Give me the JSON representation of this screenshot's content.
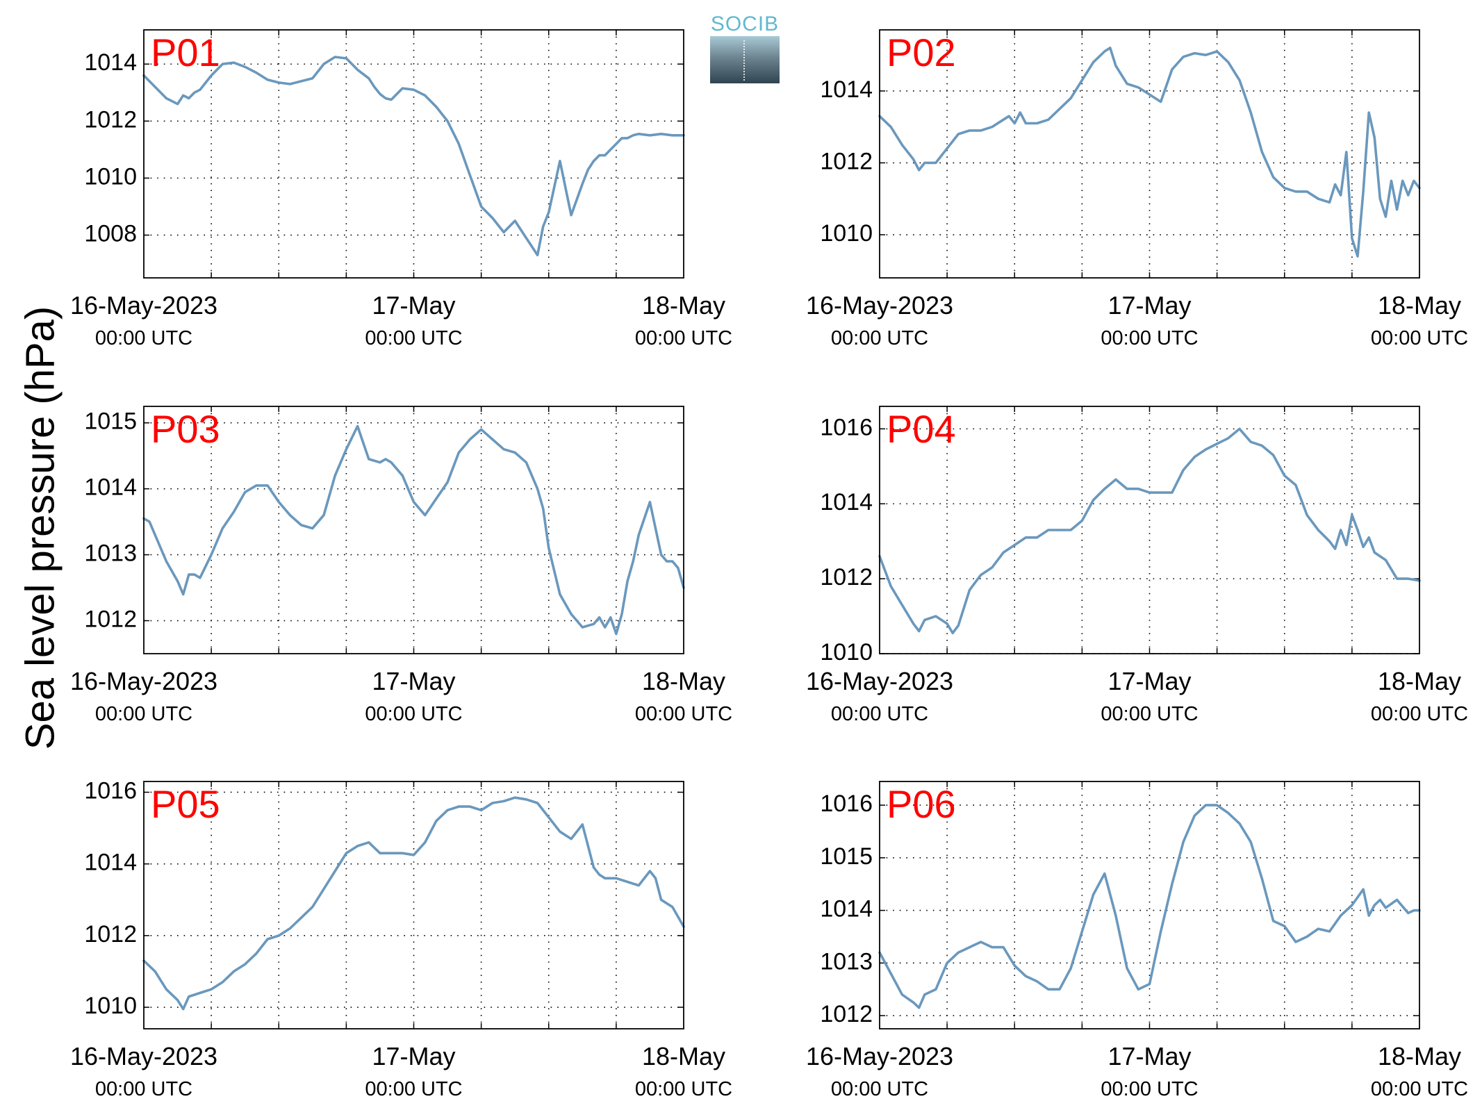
{
  "ylabel": "Sea level pressure (hPa)",
  "logo": {
    "text": "SOCIB"
  },
  "colors": {
    "line": "#6a98bd",
    "station_label": "#ff0000",
    "grid": "#000000"
  },
  "chart_data": [
    {
      "type": "line",
      "title": "P01",
      "xlabel": "",
      "ylabel": "Sea level pressure (hPa)",
      "xlim": [
        0,
        48
      ],
      "ylim": [
        1006.5,
        1015.2
      ],
      "yticks": [
        1008,
        1010,
        1012,
        1014
      ],
      "xticks": [
        {
          "x": 0,
          "line1": "16-May-2023",
          "line2": "00:00 UTC"
        },
        {
          "x": 24,
          "line1": "17-May",
          "line2": "00:00 UTC"
        },
        {
          "x": 48,
          "line1": "18-May",
          "line2": "00:00 UTC"
        }
      ],
      "xgrid": [
        6,
        12,
        18,
        24,
        30,
        36,
        42
      ],
      "series": [
        {
          "x": [
            0,
            1,
            2,
            3,
            3.5,
            4,
            4.5,
            5,
            6,
            7,
            8,
            9,
            10,
            11,
            12,
            13,
            14,
            15,
            16,
            17,
            18,
            19,
            20,
            20.5,
            21,
            21.5,
            22,
            23,
            24,
            25,
            26,
            27,
            28,
            29,
            30,
            31,
            32,
            33,
            34,
            35,
            35.5,
            36,
            37,
            38,
            39,
            39.5,
            40,
            40.5,
            41,
            41.5,
            42,
            42.5,
            43,
            43.5,
            44,
            45,
            46,
            47,
            48
          ],
          "y": [
            1013.6,
            1013.2,
            1012.8,
            1012.6,
            1012.9,
            1012.8,
            1013,
            1013.1,
            1013.6,
            1014,
            1014.05,
            1013.9,
            1013.7,
            1013.45,
            1013.35,
            1013.3,
            1013.4,
            1013.5,
            1014,
            1014.25,
            1014.2,
            1013.8,
            1013.5,
            1013.2,
            1012.95,
            1012.8,
            1012.75,
            1013.15,
            1013.1,
            1012.9,
            1012.5,
            1012,
            1011.2,
            1010.1,
            1009,
            1008.6,
            1008.1,
            1008.5,
            1007.9,
            1007.3,
            1008.3,
            1008.8,
            1010.6,
            1008.7,
            1009.8,
            1010.3,
            1010.6,
            1010.8,
            1010.8,
            1011,
            1011.2,
            1011.4,
            1011.4,
            1011.5,
            1011.55,
            1011.5,
            1011.55,
            1011.5,
            1011.5
          ]
        }
      ]
    },
    {
      "type": "line",
      "title": "P02",
      "xlabel": "",
      "ylabel": "Sea level pressure (hPa)",
      "xlim": [
        0,
        48
      ],
      "ylim": [
        1008.8,
        1015.7
      ],
      "yticks": [
        1010,
        1012,
        1014
      ],
      "xticks": [
        {
          "x": 0,
          "line1": "16-May-2023",
          "line2": "00:00 UTC"
        },
        {
          "x": 24,
          "line1": "17-May",
          "line2": "00:00 UTC"
        },
        {
          "x": 48,
          "line1": "18-May",
          "line2": "00:00 UTC"
        }
      ],
      "xgrid": [
        6,
        12,
        18,
        24,
        30,
        36,
        42
      ],
      "series": [
        {
          "x": [
            0,
            1,
            2,
            3,
            3.5,
            4,
            5,
            6,
            7,
            8,
            9,
            10,
            11,
            11.5,
            12,
            12.5,
            13,
            14,
            15,
            16,
            17,
            18,
            19,
            20,
            20.5,
            21,
            22,
            23,
            24,
            25,
            26,
            27,
            28,
            29,
            30,
            31,
            32,
            33,
            34,
            35,
            36,
            37,
            38,
            39,
            40,
            40.5,
            41,
            41.5,
            42,
            42.5,
            43,
            43.5,
            44,
            44.5,
            45,
            45.5,
            46,
            46.5,
            47,
            47.5,
            48
          ],
          "y": [
            1013.3,
            1013,
            1012.5,
            1012.1,
            1011.8,
            1012,
            1012,
            1012.4,
            1012.8,
            1012.9,
            1012.9,
            1013,
            1013.2,
            1013.3,
            1013.1,
            1013.4,
            1013.1,
            1013.1,
            1013.2,
            1013.5,
            1013.8,
            1014.3,
            1014.8,
            1015.1,
            1015.2,
            1014.7,
            1014.2,
            1014.1,
            1013.9,
            1013.7,
            1014.6,
            1014.95,
            1015.05,
            1015,
            1015.1,
            1014.8,
            1014.3,
            1013.4,
            1012.3,
            1011.6,
            1011.3,
            1011.2,
            1011.2,
            1011,
            1010.9,
            1011.4,
            1011.1,
            1012.3,
            1009.9,
            1009.4,
            1011.2,
            1013.4,
            1012.7,
            1011,
            1010.5,
            1011.5,
            1010.7,
            1011.5,
            1011.1,
            1011.5,
            1011.3
          ]
        }
      ]
    },
    {
      "type": "line",
      "title": "P03",
      "xlabel": "",
      "ylabel": "Sea level pressure (hPa)",
      "xlim": [
        0,
        48
      ],
      "ylim": [
        1011.5,
        1015.25
      ],
      "yticks": [
        1012,
        1013,
        1014,
        1015
      ],
      "xticks": [
        {
          "x": 0,
          "line1": "16-May-2023",
          "line2": "00:00 UTC"
        },
        {
          "x": 24,
          "line1": "17-May",
          "line2": "00:00 UTC"
        },
        {
          "x": 48,
          "line1": "18-May",
          "line2": "00:00 UTC"
        }
      ],
      "xgrid": [
        6,
        12,
        18,
        24,
        30,
        36,
        42
      ],
      "series": [
        {
          "x": [
            0,
            0.5,
            1,
            1.5,
            2,
            3,
            3.5,
            4,
            4.5,
            5,
            6,
            7,
            8,
            9,
            10,
            11,
            12,
            13,
            14,
            15,
            16,
            17,
            18,
            19,
            20,
            21,
            21.5,
            22,
            23,
            24,
            25,
            26,
            27,
            28,
            29,
            30,
            31,
            32,
            33,
            34,
            35,
            35.5,
            36,
            37,
            38,
            39,
            40,
            40.5,
            41,
            41.5,
            42,
            42.5,
            43,
            43.5,
            44,
            45,
            46,
            46.5,
            47,
            47.5,
            48
          ],
          "y": [
            1013.55,
            1013.5,
            1013.3,
            1013.1,
            1012.9,
            1012.6,
            1012.4,
            1012.7,
            1012.7,
            1012.65,
            1013,
            1013.4,
            1013.65,
            1013.95,
            1014.05,
            1014.05,
            1013.8,
            1013.6,
            1013.45,
            1013.4,
            1013.6,
            1014.2,
            1014.6,
            1014.95,
            1014.45,
            1014.4,
            1014.45,
            1014.4,
            1014.2,
            1013.8,
            1013.6,
            1013.85,
            1014.1,
            1014.55,
            1014.75,
            1014.9,
            1014.75,
            1014.6,
            1014.55,
            1014.4,
            1014,
            1013.7,
            1013.1,
            1012.4,
            1012.1,
            1011.9,
            1011.95,
            1012.05,
            1011.9,
            1012.05,
            1011.8,
            1012.1,
            1012.6,
            1012.9,
            1013.3,
            1013.8,
            1013,
            1012.9,
            1012.9,
            1012.8,
            1012.5
          ]
        }
      ]
    },
    {
      "type": "line",
      "title": "P04",
      "xlabel": "",
      "ylabel": "Sea level pressure (hPa)",
      "xlim": [
        0,
        48
      ],
      "ylim": [
        1010,
        1016.6
      ],
      "yticks": [
        1010,
        1012,
        1014,
        1016
      ],
      "xticks": [
        {
          "x": 0,
          "line1": "16-May-2023",
          "line2": "00:00 UTC"
        },
        {
          "x": 24,
          "line1": "17-May",
          "line2": "00:00 UTC"
        },
        {
          "x": 48,
          "line1": "18-May",
          "line2": "00:00 UTC"
        }
      ],
      "xgrid": [
        6,
        12,
        18,
        24,
        30,
        36,
        42
      ],
      "series": [
        {
          "x": [
            0,
            1,
            2,
            3,
            3.5,
            4,
            5,
            6,
            6.5,
            7,
            8,
            9,
            10,
            11,
            12,
            13,
            14,
            15,
            16,
            17,
            18,
            19,
            20,
            21,
            22,
            23,
            24,
            25,
            26,
            27,
            28,
            29,
            30,
            31,
            32,
            33,
            34,
            35,
            36,
            37,
            38,
            39,
            40,
            40.5,
            41,
            41.5,
            42,
            42.5,
            43,
            43.5,
            44,
            45,
            46,
            47,
            48
          ],
          "y": [
            1012.6,
            1011.8,
            1011.3,
            1010.8,
            1010.6,
            1010.9,
            1011,
            1010.8,
            1010.55,
            1010.75,
            1011.7,
            1012.1,
            1012.3,
            1012.7,
            1012.9,
            1013.1,
            1013.1,
            1013.3,
            1013.3,
            1013.3,
            1013.55,
            1014.1,
            1014.4,
            1014.65,
            1014.4,
            1014.4,
            1014.3,
            1014.3,
            1014.3,
            1014.9,
            1015.25,
            1015.45,
            1015.6,
            1015.75,
            1016,
            1015.65,
            1015.55,
            1015.3,
            1014.75,
            1014.5,
            1013.7,
            1013.3,
            1013,
            1012.8,
            1013.3,
            1012.9,
            1013.7,
            1013.3,
            1012.85,
            1013.1,
            1012.7,
            1012.5,
            1012,
            1012,
            1011.95
          ]
        }
      ]
    },
    {
      "type": "line",
      "title": "P05",
      "xlabel": "",
      "ylabel": "Sea level pressure (hPa)",
      "xlim": [
        0,
        48
      ],
      "ylim": [
        1009.4,
        1016.3
      ],
      "yticks": [
        1010,
        1012,
        1014,
        1016
      ],
      "xticks": [
        {
          "x": 0,
          "line1": "16-May-2023",
          "line2": "00:00 UTC"
        },
        {
          "x": 24,
          "line1": "17-May",
          "line2": "00:00 UTC"
        },
        {
          "x": 48,
          "line1": "18-May",
          "line2": "00:00 UTC"
        }
      ],
      "xgrid": [
        6,
        12,
        18,
        24,
        30,
        36,
        42
      ],
      "series": [
        {
          "x": [
            0,
            1,
            2,
            3,
            3.5,
            4,
            5,
            6,
            7,
            8,
            9,
            10,
            11,
            12,
            13,
            14,
            15,
            16,
            17,
            18,
            19,
            20,
            21,
            22,
            23,
            24,
            25,
            26,
            27,
            28,
            29,
            30,
            31,
            32,
            33,
            34,
            35,
            36,
            37,
            38,
            39,
            40,
            40.5,
            41,
            42,
            43,
            44,
            45,
            45.5,
            46,
            47,
            48
          ],
          "y": [
            1011.3,
            1011,
            1010.5,
            1010.2,
            1009.95,
            1010.3,
            1010.4,
            1010.5,
            1010.7,
            1011,
            1011.2,
            1011.5,
            1011.9,
            1012,
            1012.2,
            1012.5,
            1012.8,
            1013.3,
            1013.8,
            1014.3,
            1014.5,
            1014.6,
            1014.3,
            1014.3,
            1014.3,
            1014.25,
            1014.6,
            1015.2,
            1015.5,
            1015.6,
            1015.6,
            1015.5,
            1015.7,
            1015.75,
            1015.85,
            1015.8,
            1015.7,
            1015.3,
            1014.9,
            1014.7,
            1015.1,
            1013.9,
            1013.7,
            1013.6,
            1013.6,
            1013.5,
            1013.4,
            1013.8,
            1013.6,
            1013,
            1012.8,
            1012.25
          ]
        }
      ]
    },
    {
      "type": "line",
      "title": "P06",
      "xlabel": "",
      "ylabel": "Sea level pressure (hPa)",
      "xlim": [
        0,
        48
      ],
      "ylim": [
        1011.75,
        1016.45
      ],
      "yticks": [
        1012,
        1013,
        1014,
        1015,
        1016
      ],
      "xticks": [
        {
          "x": 0,
          "line1": "16-May-2023",
          "line2": "00:00 UTC"
        },
        {
          "x": 24,
          "line1": "17-May",
          "line2": "00:00 UTC"
        },
        {
          "x": 48,
          "line1": "18-May",
          "line2": "00:00 UTC"
        }
      ],
      "xgrid": [
        6,
        12,
        18,
        24,
        30,
        36,
        42
      ],
      "series": [
        {
          "x": [
            0,
            1,
            2,
            3,
            3.5,
            4,
            5,
            6,
            7,
            8,
            9,
            10,
            11,
            12,
            13,
            14,
            15,
            16,
            17,
            18,
            19,
            20,
            21,
            21.5,
            22,
            23,
            24,
            25,
            26,
            27,
            28,
            29,
            30,
            31,
            32,
            33,
            34,
            35,
            36,
            37,
            38,
            39,
            40,
            40.5,
            41,
            42,
            43,
            43.5,
            44,
            44.5,
            45,
            46,
            47,
            47.5,
            48
          ],
          "y": [
            1013.2,
            1012.8,
            1012.4,
            1012.25,
            1012.15,
            1012.4,
            1012.5,
            1013,
            1013.2,
            1013.3,
            1013.4,
            1013.3,
            1013.3,
            1012.95,
            1012.75,
            1012.65,
            1012.5,
            1012.5,
            1012.9,
            1013.6,
            1014.3,
            1014.7,
            1013.9,
            1013.4,
            1012.9,
            1012.5,
            1012.6,
            1013.6,
            1014.5,
            1015.3,
            1015.8,
            1016,
            1016,
            1015.85,
            1015.65,
            1015.3,
            1014.6,
            1013.8,
            1013.7,
            1013.4,
            1013.5,
            1013.65,
            1013.6,
            1013.75,
            1013.9,
            1014.1,
            1014.4,
            1013.9,
            1014.1,
            1014.2,
            1014.05,
            1014.2,
            1013.95,
            1014,
            1014
          ]
        }
      ]
    }
  ]
}
